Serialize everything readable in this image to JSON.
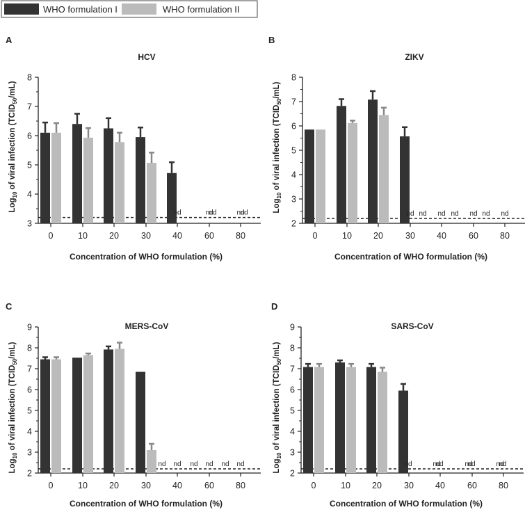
{
  "legend": {
    "entries": [
      {
        "label": "WHO formulation I",
        "color": "#333333"
      },
      {
        "label": "WHO formulation II",
        "color": "#bbbbbb"
      }
    ]
  },
  "nd_label": "nd",
  "chart_data": [
    {
      "type": "bar",
      "panel": "A",
      "title": "HCV",
      "xlabel": "Concentration of WHO formulation (%)",
      "ylabel": "Log10 of viral infection (TCID50/mL)",
      "ylim": [
        3,
        8
      ],
      "yticks": [
        "3",
        "4",
        "5",
        "6",
        "7",
        "8"
      ],
      "categories": [
        "0",
        "10",
        "20",
        "30",
        "40",
        "60",
        "80"
      ],
      "detection_limit": 3.2,
      "series": [
        {
          "name": "WHO formulation I",
          "values": [
            6.1,
            6.4,
            6.25,
            5.95,
            4.72,
            null,
            null
          ],
          "errors": [
            0.35,
            0.35,
            0.35,
            0.33,
            0.37,
            null,
            null
          ],
          "nd": [
            false,
            false,
            false,
            false,
            false,
            true,
            true
          ]
        },
        {
          "name": "WHO formulation II",
          "values": [
            6.1,
            5.93,
            5.78,
            5.07,
            null,
            null,
            null
          ],
          "errors": [
            0.33,
            0.33,
            0.32,
            0.35,
            null,
            null,
            null
          ],
          "nd": [
            false,
            false,
            false,
            false,
            true,
            true,
            true
          ]
        }
      ]
    },
    {
      "type": "bar",
      "panel": "B",
      "title": "ZIKV",
      "xlabel": "Concentration of WHO formulation (%)",
      "ylabel": "Log10 of viral infection (TCID50/mL)",
      "ylim": [
        2,
        8
      ],
      "yticks": [
        "2",
        "3",
        "4",
        "5",
        "6",
        "7",
        "8"
      ],
      "categories": [
        "0",
        "10",
        "20",
        "30",
        "40",
        "60",
        "80"
      ],
      "detection_limit": 2.2,
      "series": [
        {
          "name": "WHO formulation I",
          "values": [
            5.85,
            6.82,
            7.08,
            5.57,
            null,
            null,
            null
          ],
          "errors": [
            null,
            0.28,
            0.35,
            0.38,
            null,
            null,
            null
          ],
          "nd": [
            false,
            false,
            false,
            false,
            true,
            true,
            true
          ]
        },
        {
          "name": "WHO formulation II",
          "values": [
            5.85,
            6.12,
            6.45,
            null,
            null,
            null,
            null
          ],
          "errors": [
            null,
            0.1,
            0.3,
            null,
            null,
            null,
            null
          ],
          "nd": [
            false,
            false,
            false,
            true,
            true,
            true,
            true
          ]
        }
      ]
    },
    {
      "type": "bar",
      "panel": "C",
      "title": "MERS-CoV",
      "xlabel": "Concentration of WHO formulation (%)",
      "ylabel": "Log10 of viral infection (TCID50/mL)",
      "ylim": [
        2,
        9
      ],
      "yticks": [
        "2",
        "3",
        "4",
        "5",
        "6",
        "7",
        "8",
        "9"
      ],
      "categories": [
        "0",
        "10",
        "20",
        "30",
        "40",
        "60",
        "80"
      ],
      "detection_limit": 2.2,
      "series": [
        {
          "name": "WHO formulation I",
          "values": [
            7.45,
            7.53,
            7.92,
            6.85,
            null,
            null,
            null
          ],
          "errors": [
            0.1,
            null,
            0.15,
            null,
            null,
            null,
            null
          ],
          "nd": [
            false,
            false,
            false,
            false,
            true,
            true,
            true
          ]
        },
        {
          "name": "WHO formulation II",
          "values": [
            7.45,
            7.65,
            7.95,
            3.1,
            null,
            null,
            null
          ],
          "errors": [
            0.1,
            0.08,
            0.3,
            0.3,
            null,
            null,
            null
          ],
          "nd": [
            false,
            false,
            false,
            false,
            true,
            true,
            true
          ]
        }
      ]
    },
    {
      "type": "bar",
      "panel": "D",
      "title": "SARS-CoV",
      "xlabel": "Concentration of WHO formulation (%)",
      "ylabel": "Log10 of viral infection (TCID50/mL)",
      "ylim": [
        2,
        9
      ],
      "yticks": [
        "2",
        "3",
        "4",
        "5",
        "6",
        "7",
        "8",
        "9"
      ],
      "categories": [
        "0",
        "10",
        "20",
        "30",
        "40",
        "60",
        "80"
      ],
      "detection_limit": 2.2,
      "series": [
        {
          "name": "WHO formulation I",
          "values": [
            7.08,
            7.3,
            7.08,
            5.95,
            null,
            null,
            null
          ],
          "errors": [
            0.15,
            0.1,
            0.15,
            0.32,
            null,
            null,
            null
          ],
          "nd": [
            false,
            false,
            false,
            false,
            true,
            true,
            true
          ]
        },
        {
          "name": "WHO formulation II",
          "values": [
            7.08,
            7.08,
            6.85,
            null,
            null,
            null,
            null
          ],
          "errors": [
            0.15,
            0.15,
            0.2,
            null,
            null,
            null,
            null
          ],
          "nd": [
            false,
            false,
            false,
            true,
            true,
            true,
            true
          ]
        }
      ]
    }
  ]
}
